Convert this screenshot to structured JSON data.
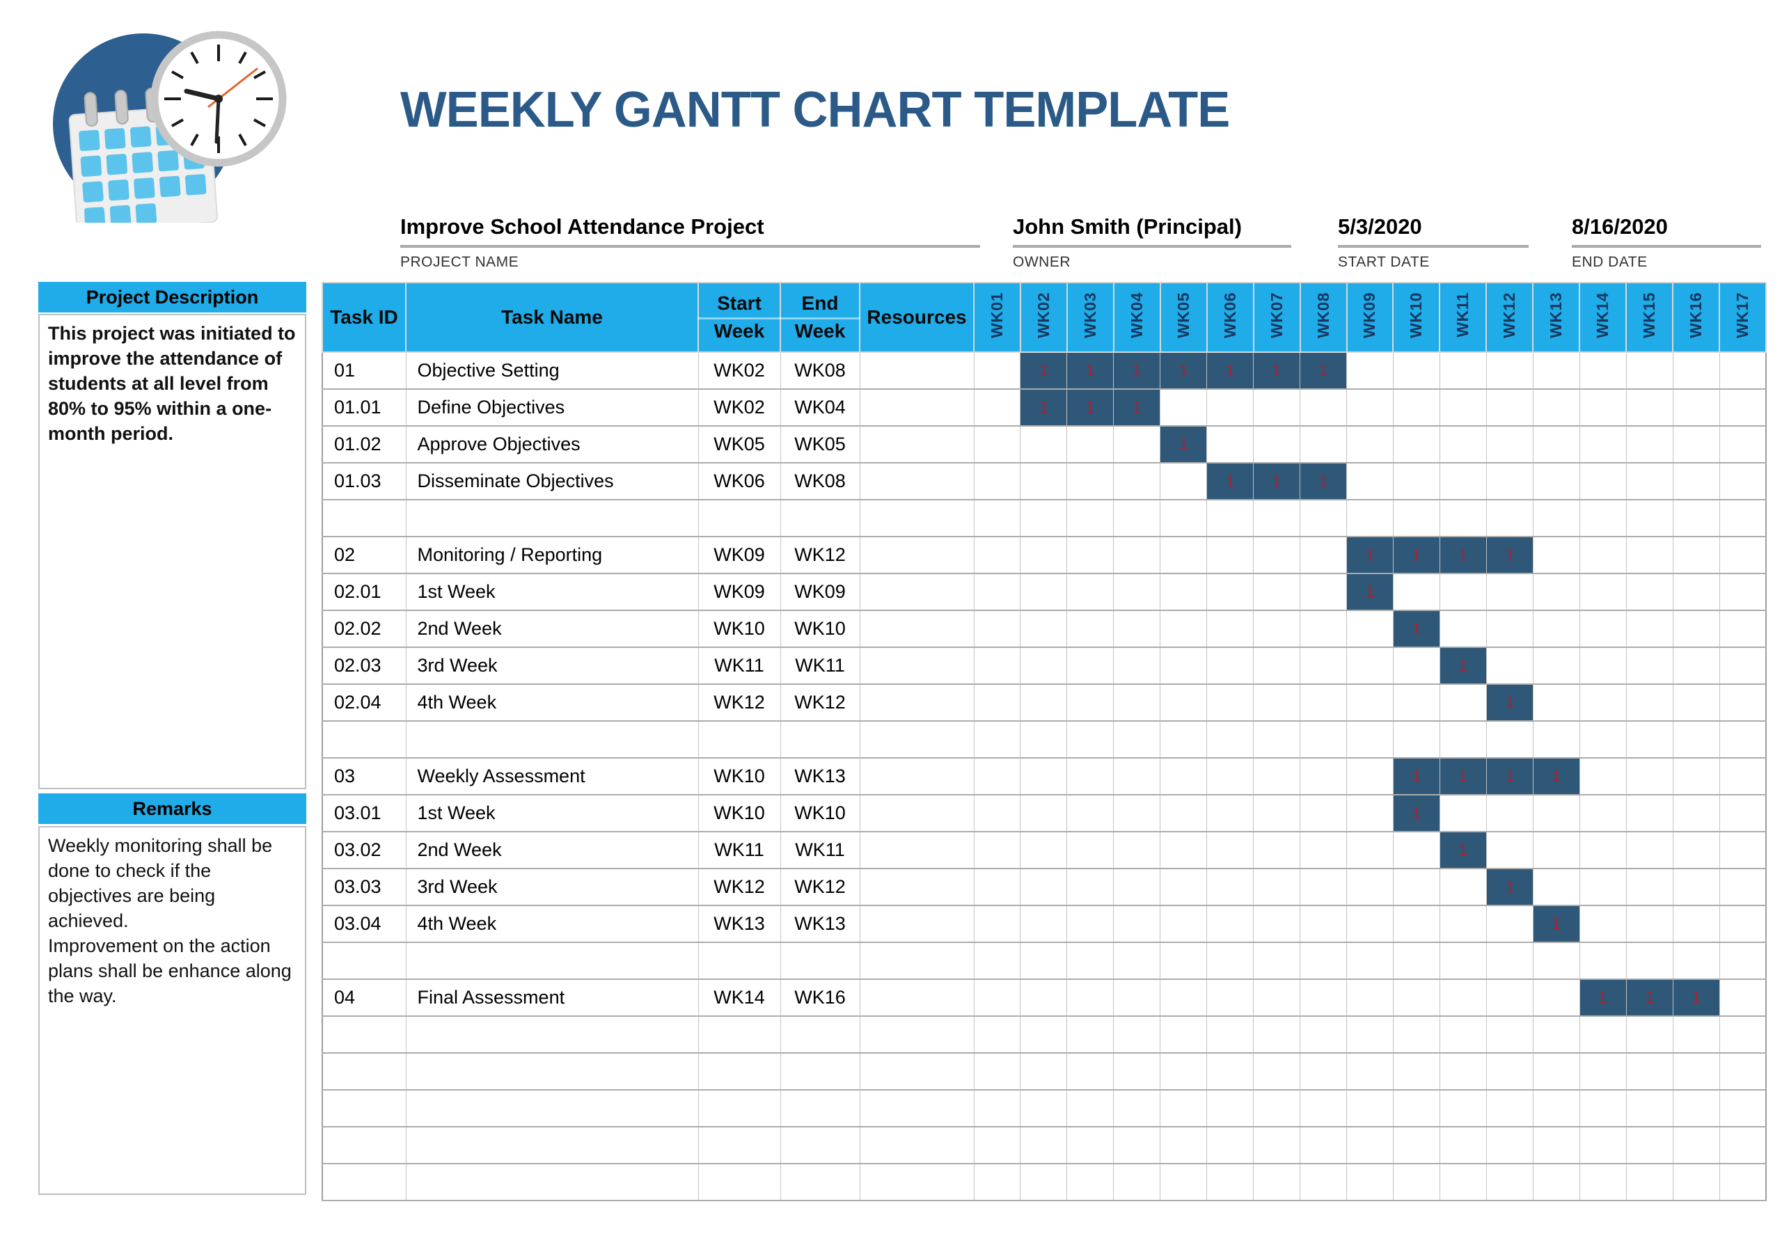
{
  "page_title": "WEEKLY GANTT CHART TEMPLATE",
  "logo": {
    "icon": "calendar-clock-icon"
  },
  "header_fields": {
    "project_name": {
      "value": "Improve School Attendance Project",
      "label": "PROJECT NAME"
    },
    "owner": {
      "value": "John Smith (Principal)",
      "label": "OWNER"
    },
    "start_date": {
      "value": "5/3/2020",
      "label": "START DATE"
    },
    "end_date": {
      "value": "8/16/2020",
      "label": "END DATE"
    }
  },
  "sidebar": {
    "description_header": "Project Description",
    "description_text": "This project was initiated to improve the attendance of students at all level from 80% to 95% within a one-month period.",
    "remarks_header": "Remarks",
    "remarks_text": "Weekly monitoring shall be done to check if the objectives are being achieved.\nImprovement on the action plans shall be enhance along the way."
  },
  "gantt": {
    "column_headers": {
      "task_id": "Task ID",
      "task_name": "Task Name",
      "start_week_line1": "Start",
      "start_week_line2": "Week",
      "end_week_line1": "End",
      "end_week_line2": "Week",
      "resources": "Resources"
    },
    "weeks": [
      "WK01",
      "WK02",
      "WK03",
      "WK04",
      "WK05",
      "WK06",
      "WK07",
      "WK08",
      "WK09",
      "WK10",
      "WK11",
      "WK12",
      "WK13",
      "WK14",
      "WK15",
      "WK16",
      "WK17"
    ],
    "bar_value": "1",
    "rows": [
      {
        "task_id": "01",
        "task_name": "Objective Setting",
        "start_week": "WK02",
        "end_week": "WK08",
        "resources": "",
        "bar_start": 2,
        "bar_end": 8
      },
      {
        "task_id": "01.01",
        "task_name": "Define Objectives",
        "start_week": "WK02",
        "end_week": "WK04",
        "resources": "",
        "bar_start": 2,
        "bar_end": 4
      },
      {
        "task_id": "01.02",
        "task_name": "Approve Objectives",
        "start_week": "WK05",
        "end_week": "WK05",
        "resources": "",
        "bar_start": 5,
        "bar_end": 5
      },
      {
        "task_id": "01.03",
        "task_name": "Disseminate Objectives",
        "start_week": "WK06",
        "end_week": "WK08",
        "resources": "",
        "bar_start": 6,
        "bar_end": 8
      },
      {
        "task_id": "",
        "task_name": "",
        "start_week": "",
        "end_week": "",
        "resources": "",
        "bar_start": null,
        "bar_end": null
      },
      {
        "task_id": "02",
        "task_name": "Monitoring / Reporting",
        "start_week": "WK09",
        "end_week": "WK12",
        "resources": "",
        "bar_start": 9,
        "bar_end": 12
      },
      {
        "task_id": "02.01",
        "task_name": "1st Week",
        "start_week": "WK09",
        "end_week": "WK09",
        "resources": "",
        "bar_start": 9,
        "bar_end": 9
      },
      {
        "task_id": "02.02",
        "task_name": "2nd Week",
        "start_week": "WK10",
        "end_week": "WK10",
        "resources": "",
        "bar_start": 10,
        "bar_end": 10
      },
      {
        "task_id": "02.03",
        "task_name": "3rd Week",
        "start_week": "WK11",
        "end_week": "WK11",
        "resources": "",
        "bar_start": 11,
        "bar_end": 11
      },
      {
        "task_id": "02.04",
        "task_name": "4th Week",
        "start_week": "WK12",
        "end_week": "WK12",
        "resources": "",
        "bar_start": 12,
        "bar_end": 12
      },
      {
        "task_id": "",
        "task_name": "",
        "start_week": "",
        "end_week": "",
        "resources": "",
        "bar_start": null,
        "bar_end": null
      },
      {
        "task_id": "03",
        "task_name": "Weekly Assessment",
        "start_week": "WK10",
        "end_week": "WK13",
        "resources": "",
        "bar_start": 10,
        "bar_end": 13
      },
      {
        "task_id": "03.01",
        "task_name": "1st Week",
        "start_week": "WK10",
        "end_week": "WK10",
        "resources": "",
        "bar_start": 10,
        "bar_end": 10
      },
      {
        "task_id": "03.02",
        "task_name": "2nd Week",
        "start_week": "WK11",
        "end_week": "WK11",
        "resources": "",
        "bar_start": 11,
        "bar_end": 11
      },
      {
        "task_id": "03.03",
        "task_name": "3rd Week",
        "start_week": "WK12",
        "end_week": "WK12",
        "resources": "",
        "bar_start": 12,
        "bar_end": 12
      },
      {
        "task_id": "03.04",
        "task_name": "4th Week",
        "start_week": "WK13",
        "end_week": "WK13",
        "resources": "",
        "bar_start": 13,
        "bar_end": 13
      },
      {
        "task_id": "",
        "task_name": "",
        "start_week": "",
        "end_week": "",
        "resources": "",
        "bar_start": null,
        "bar_end": null
      },
      {
        "task_id": "04",
        "task_name": "Final Assessment",
        "start_week": "WK14",
        "end_week": "WK16",
        "resources": "",
        "bar_start": 14,
        "bar_end": 16
      },
      {
        "task_id": "",
        "task_name": "",
        "start_week": "",
        "end_week": "",
        "resources": "",
        "bar_start": null,
        "bar_end": null
      },
      {
        "task_id": "",
        "task_name": "",
        "start_week": "",
        "end_week": "",
        "resources": "",
        "bar_start": null,
        "bar_end": null
      },
      {
        "task_id": "",
        "task_name": "",
        "start_week": "",
        "end_week": "",
        "resources": "",
        "bar_start": null,
        "bar_end": null
      },
      {
        "task_id": "",
        "task_name": "",
        "start_week": "",
        "end_week": "",
        "resources": "",
        "bar_start": null,
        "bar_end": null
      },
      {
        "task_id": "",
        "task_name": "",
        "start_week": "",
        "end_week": "",
        "resources": "",
        "bar_start": null,
        "bar_end": null
      }
    ]
  },
  "colors": {
    "accent_cyan": "#1FACE9",
    "bar_navy": "#2E5778",
    "bar_value_red": "#A62433",
    "title_blue": "#2B5A88",
    "logo_circle_blue": "#2D5F90",
    "logo_square_blue": "#5CC3EC",
    "gridline_gray": "#ACACAC"
  },
  "chart_data": {
    "type": "table",
    "subtype": "gantt",
    "title": "WEEKLY GANTT CHART TEMPLATE",
    "project": "Improve School Attendance Project",
    "owner": "John Smith (Principal)",
    "start_date": "5/3/2020",
    "end_date": "8/16/2020",
    "x_categories": [
      "WK01",
      "WK02",
      "WK03",
      "WK04",
      "WK05",
      "WK06",
      "WK07",
      "WK08",
      "WK09",
      "WK10",
      "WK11",
      "WK12",
      "WK13",
      "WK14",
      "WK15",
      "WK16",
      "WK17"
    ],
    "cell_value_marked": 1,
    "tasks": [
      {
        "id": "01",
        "name": "Objective Setting",
        "start": "WK02",
        "end": "WK08",
        "marked_weeks": [
          2,
          3,
          4,
          5,
          6,
          7,
          8
        ]
      },
      {
        "id": "01.01",
        "name": "Define Objectives",
        "start": "WK02",
        "end": "WK04",
        "marked_weeks": [
          2,
          3,
          4
        ]
      },
      {
        "id": "01.02",
        "name": "Approve Objectives",
        "start": "WK05",
        "end": "WK05",
        "marked_weeks": [
          5
        ]
      },
      {
        "id": "01.03",
        "name": "Disseminate Objectives",
        "start": "WK06",
        "end": "WK08",
        "marked_weeks": [
          6,
          7,
          8
        ]
      },
      {
        "id": "02",
        "name": "Monitoring / Reporting",
        "start": "WK09",
        "end": "WK12",
        "marked_weeks": [
          9,
          10,
          11,
          12
        ]
      },
      {
        "id": "02.01",
        "name": "1st Week",
        "start": "WK09",
        "end": "WK09",
        "marked_weeks": [
          9
        ]
      },
      {
        "id": "02.02",
        "name": "2nd Week",
        "start": "WK10",
        "end": "WK10",
        "marked_weeks": [
          10
        ]
      },
      {
        "id": "02.03",
        "name": "3rd Week",
        "start": "WK11",
        "end": "WK11",
        "marked_weeks": [
          11
        ]
      },
      {
        "id": "02.04",
        "name": "4th Week",
        "start": "WK12",
        "end": "WK12",
        "marked_weeks": [
          12
        ]
      },
      {
        "id": "03",
        "name": "Weekly Assessment",
        "start": "WK10",
        "end": "WK13",
        "marked_weeks": [
          10,
          11,
          12,
          13
        ]
      },
      {
        "id": "03.01",
        "name": "1st Week",
        "start": "WK10",
        "end": "WK10",
        "marked_weeks": [
          10
        ]
      },
      {
        "id": "03.02",
        "name": "2nd Week",
        "start": "WK11",
        "end": "WK11",
        "marked_weeks": [
          11
        ]
      },
      {
        "id": "03.03",
        "name": "3rd Week",
        "start": "WK12",
        "end": "WK12",
        "marked_weeks": [
          12
        ]
      },
      {
        "id": "03.04",
        "name": "4th Week",
        "start": "WK13",
        "end": "WK13",
        "marked_weeks": [
          13
        ]
      },
      {
        "id": "04",
        "name": "Final Assessment",
        "start": "WK14",
        "end": "WK16",
        "marked_weeks": [
          14,
          15,
          16
        ]
      }
    ]
  }
}
